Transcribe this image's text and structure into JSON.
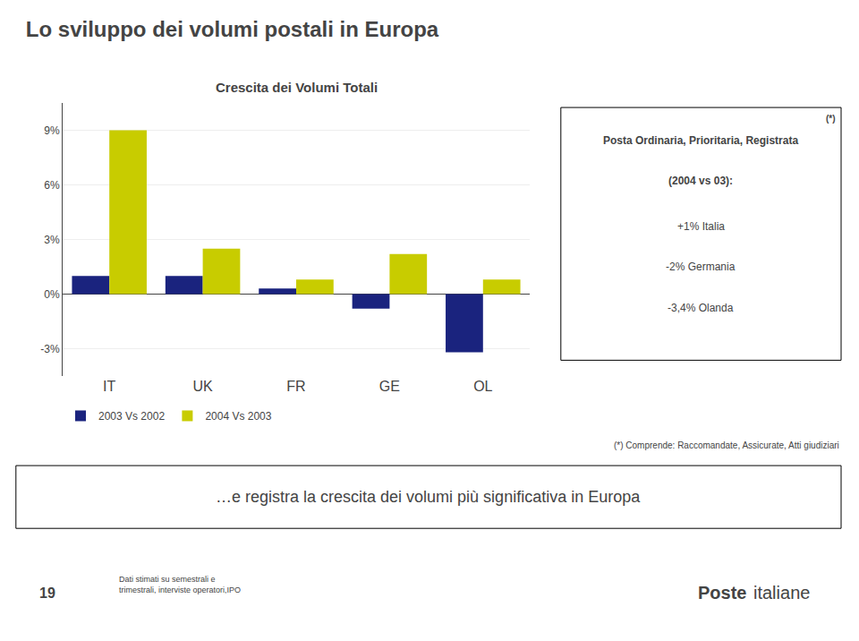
{
  "chart_data": {
    "type": "bar",
    "title": "Lo sviluppo dei volumi postali in Europa",
    "subtitle": "Crescita dei Volumi Totali",
    "categories": [
      "IT",
      "UK",
      "FR",
      "GE",
      "OL"
    ],
    "series": [
      {
        "name": "2003 Vs 2002",
        "color": "#1a237e",
        "values": [
          1.0,
          1.0,
          0.3,
          -0.8,
          -3.2
        ]
      },
      {
        "name": "2004 Vs 2003",
        "color": "#c8cc00",
        "values": [
          9.0,
          2.5,
          0.8,
          2.2,
          0.8
        ]
      }
    ],
    "ylim": [
      -4.5,
      10.5
    ],
    "yticks": [
      {
        "value": -3,
        "label": "-3%"
      },
      {
        "value": 0,
        "label": "0%"
      },
      {
        "value": 3,
        "label": "3%"
      },
      {
        "value": 6,
        "label": "6%"
      },
      {
        "value": 9,
        "label": "9%"
      }
    ],
    "grid": true,
    "legend": "bottom",
    "annotations": [
      "Posta Ordinaria, Prioritaria, Registrata",
      "(2004 vs 03):",
      "+1% Italia",
      "-2% Germania",
      "-3,4% Olanda",
      "(*)",
      "(*) Comprende: Raccomandate, Assicurate, Atti giudiziari",
      "…e registra la crescita dei volumi più significativa in Europa",
      "Dati stimati su semestrali e\ntrimestrali, interviste operatori,IPO",
      "19",
      "Poste",
      "italiane"
    ]
  }
}
